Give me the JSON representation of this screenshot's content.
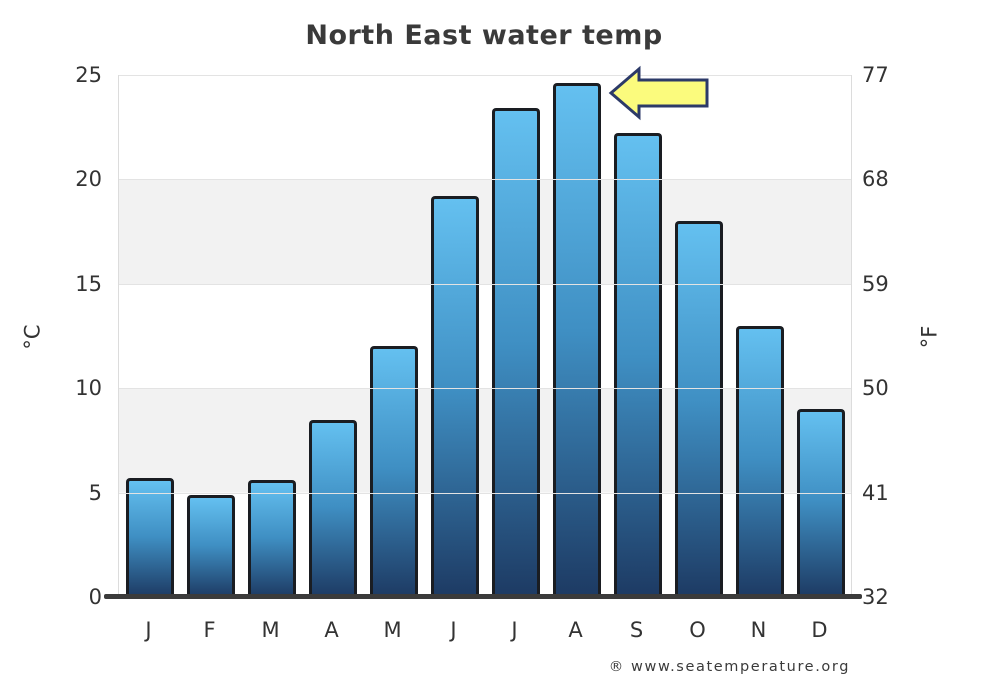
{
  "figure": {
    "title": "North East water temp",
    "attribution": "® www.seatemperature.org"
  },
  "chart_data": {
    "type": "bar",
    "title": "North East water temp",
    "categories": [
      "J",
      "F",
      "M",
      "A",
      "M",
      "J",
      "J",
      "A",
      "S",
      "O",
      "N",
      "D"
    ],
    "values": [
      5.7,
      4.9,
      5.6,
      8.5,
      12.0,
      19.2,
      23.4,
      24.6,
      22.2,
      18.0,
      13.0,
      9.0
    ],
    "ylabel_left": "°C",
    "ylabel_right": "°F",
    "yticks_left": [
      0,
      5,
      10,
      15,
      20,
      25
    ],
    "yticks_right": [
      32,
      41,
      50,
      59,
      68,
      77
    ],
    "ylim": [
      0,
      25
    ],
    "grid": "alternating horizontal bands, light gray lines every 5°C",
    "legend": "none",
    "bar_color_top": "#64c0f0",
    "bar_color_bottom": "#1d3a63",
    "bar_border_color": "#1a1d22",
    "band_gray": "#f2f2f2",
    "annotation": {
      "type": "arrow",
      "direction": "left",
      "points_at": "August bar (24.6 °C / 76 °F peak)",
      "fill": "#fbfb7d",
      "stroke": "#2c3a68"
    }
  }
}
